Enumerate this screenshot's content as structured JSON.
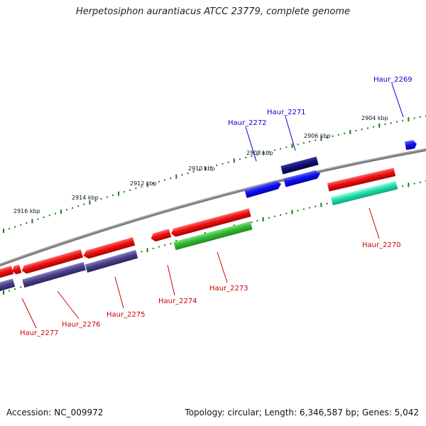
{
  "title": "Herpetosiphon aurantiacus ATCC 23779, complete genome",
  "footer": {
    "accession": "Accession: NC_009972",
    "topology": "Topology: circular; Length: 6,346,587 bp; Genes: 5,042"
  },
  "colors": {
    "backbone": "#808080",
    "ticks": "#1a7a1a",
    "label_top": "#0000cc",
    "label_bottom": "#cc0000"
  },
  "scale_labels": [
    "2904 kbp",
    "2906 kbp",
    "2908 kbp",
    "2910 kbp",
    "2912 kbp",
    "2914 kbp",
    "2916 kbp"
  ],
  "genes": [
    {
      "label": "Haur_2269",
      "strand": "top"
    },
    {
      "label": "Haur_2270",
      "strand": "bottom"
    },
    {
      "label": "Haur_2271",
      "strand": "top"
    },
    {
      "label": "Haur_2272",
      "strand": "top"
    },
    {
      "label": "Haur_2273",
      "strand": "bottom"
    },
    {
      "label": "Haur_2274",
      "strand": "bottom"
    },
    {
      "label": "Haur_2275",
      "strand": "bottom"
    },
    {
      "label": "Haur_2276",
      "strand": "bottom"
    },
    {
      "label": "Haur_2277",
      "strand": "bottom"
    }
  ],
  "feature_colors": {
    "red": "#ee1111",
    "blue": "#1111ee",
    "navy": "#111177",
    "green": "#33bb33",
    "teal": "#22ddaa",
    "purple": "#4a3f8a"
  }
}
